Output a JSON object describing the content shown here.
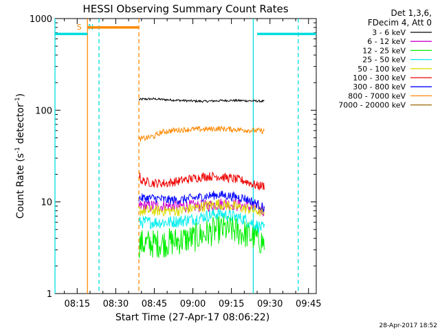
{
  "chart_data": {
    "type": "line",
    "title": "HESSI Observing Summary Count Rates",
    "xlabel": "Start Time (27-Apr-17 08:06:22)",
    "ylabel_main": "Count Rate (s",
    "ylabel_sup1": "-1",
    "ylabel_mid": " detector",
    "ylabel_sup2": "-1",
    "ylabel_end": ")",
    "yscale": "log",
    "ylim": [
      1,
      1000
    ],
    "xlim": [
      "08:06:22",
      "09:48:00"
    ],
    "x_ticks": [
      "08:15",
      "08:30",
      "08:45",
      "09:00",
      "09:15",
      "09:30",
      "09:45"
    ],
    "y_ticks": [
      "1",
      "10",
      "100",
      "1000"
    ],
    "legend_header": [
      "Det 1,3,6,",
      "FDecim 4, Att 0"
    ],
    "footer": "28-Apr-2017 18:52",
    "series": [
      {
        "name": "3 - 6 keV",
        "color": "#000000",
        "x": [
          "08:39",
          "08:40",
          "08:45",
          "08:50",
          "08:55",
          "09:00",
          "09:05",
          "09:10",
          "09:15",
          "09:20",
          "09:25",
          "09:28"
        ],
        "y": [
          130,
          132,
          133,
          130,
          128,
          126,
          125,
          127,
          128,
          127,
          126,
          125
        ]
      },
      {
        "name": "6 - 12 keV",
        "color": "#cc00cc",
        "x": [
          "08:39",
          "08:45",
          "08:50",
          "08:55",
          "09:00",
          "09:05",
          "09:10",
          "09:15",
          "09:20",
          "09:25",
          "09:28"
        ],
        "y": [
          9,
          9,
          9,
          9,
          9,
          9,
          9.5,
          9.5,
          9,
          8.5,
          8
        ]
      },
      {
        "name": "12 - 25 keV",
        "color": "#00ee00",
        "x": [
          "08:39",
          "08:45",
          "08:50",
          "08:55",
          "09:00",
          "09:05",
          "09:10",
          "09:15",
          "09:20",
          "09:25",
          "09:28"
        ],
        "y": [
          3.5,
          3.5,
          3.6,
          3.8,
          4,
          4.5,
          5,
          5,
          4.5,
          4,
          3.5
        ]
      },
      {
        "name": "25 - 50 keV",
        "color": "#00eeee",
        "x": [
          "08:39",
          "08:45",
          "08:50",
          "08:55",
          "09:00",
          "09:05",
          "09:10",
          "09:15",
          "09:20",
          "09:25",
          "09:28"
        ],
        "y": [
          6,
          6,
          6,
          6.2,
          6.5,
          7,
          7.5,
          7,
          6.5,
          5.5,
          5
        ]
      },
      {
        "name": "50 - 100 keV",
        "color": "#dddd00",
        "x": [
          "08:39",
          "08:45",
          "08:50",
          "08:55",
          "09:00",
          "09:05",
          "09:10",
          "09:15",
          "09:20",
          "09:25",
          "09:28"
        ],
        "y": [
          8,
          8,
          8,
          8,
          8.5,
          9,
          9.5,
          9,
          8.5,
          8,
          7.5
        ]
      },
      {
        "name": "100 - 300 keV",
        "color": "#ee0000",
        "x": [
          "08:39",
          "08:40",
          "08:45",
          "08:50",
          "08:55",
          "09:00",
          "09:05",
          "09:10",
          "09:15",
          "09:20",
          "09:25",
          "09:28"
        ],
        "y": [
          20,
          17,
          16,
          16,
          17,
          18,
          19,
          19,
          18,
          17,
          15,
          15
        ]
      },
      {
        "name": "300 - 800 keV",
        "color": "#0000ff",
        "x": [
          "08:39",
          "08:45",
          "08:50",
          "08:55",
          "09:00",
          "09:05",
          "09:10",
          "09:15",
          "09:20",
          "09:25",
          "09:28"
        ],
        "y": [
          11,
          11,
          10.5,
          10.5,
          11,
          11.5,
          12,
          11.5,
          11,
          9.5,
          8.5
        ]
      },
      {
        "name": "800 - 7000 keV",
        "color": "#ff8800",
        "x": [
          "08:39",
          "08:42",
          "08:45",
          "08:48",
          "08:52",
          "08:55",
          "09:00",
          "09:05",
          "09:10",
          "09:15",
          "09:20",
          "09:25",
          "09:28"
        ],
        "y": [
          48,
          50,
          52,
          58,
          60,
          61,
          62,
          62,
          63,
          62,
          61,
          60,
          59
        ]
      },
      {
        "name": "7000 - 20000 keV",
        "color": "#996600",
        "x": [],
        "y": []
      }
    ],
    "markers": [
      {
        "label": "S",
        "color": "#ff8800",
        "time": "08:19:00",
        "style": "solid"
      },
      {
        "label": "N",
        "color": "#00dddd",
        "time": "08:23:30",
        "style": "dashed"
      },
      {
        "label": "",
        "color": "#ff8800",
        "time": "08:39:00",
        "style": "dashed"
      },
      {
        "label": "",
        "color": "#00dddd",
        "time": "08:06:22",
        "style": "solid"
      },
      {
        "label": "",
        "color": "#00dddd",
        "time": "09:23:30",
        "style": "solid"
      },
      {
        "label": "",
        "color": "#00dddd",
        "time": "09:41:00",
        "style": "dashed"
      }
    ],
    "bars": [
      {
        "color": "#ff8800",
        "start": "08:19:00",
        "end": "08:39:00",
        "level": 800
      },
      {
        "color": "#00dddd",
        "start": "08:06:22",
        "end": "08:19:00",
        "level": 680
      },
      {
        "color": "#00dddd",
        "start": "09:25:00",
        "end": "09:48:00",
        "level": 680
      }
    ]
  }
}
